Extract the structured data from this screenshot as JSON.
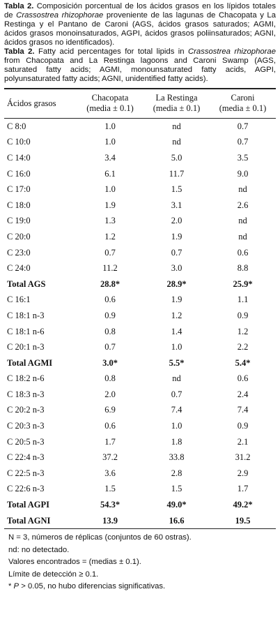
{
  "caption_es": {
    "label": "Tabla 2.",
    "text_before": " Composición porcentual de los ácidos grasos en los lípidos totales de ",
    "species": "Crassostrea rhizophorae",
    "text_after": " proveniente de las lagunas de Chacopata y La Restinga y el Pantano de Caroni (AGS, ácidos grasos saturados; AGMI, ácidos grasos monoinsaturados, AGPI, ácidos grasos poliinsaturados; AGNI, ácidos grasos no identificados)."
  },
  "caption_en": {
    "label": "Tabla 2.",
    "text_before": " Fatty acid percentages for total lipids in ",
    "species": "Crassostrea rhizophorae",
    "text_after": " from Chacopata and La Restinga lagoons and Caroni Swamp (AGS, saturated fatty acids; AGMI, monounsaturated fatty acids, AGPI, polyunsaturated fatty acids; AGNI, unidentified fatty acids)."
  },
  "table": {
    "header": [
      {
        "name": "Ácidos grasos"
      },
      {
        "name": "Chacopata",
        "sub": "(media ± 0.1)"
      },
      {
        "name": "La Restinga",
        "sub": "(media ± 0.1)"
      },
      {
        "name": "Caroni",
        "sub": "(media ± 0.1)"
      }
    ],
    "rows": [
      {
        "cells": [
          "C 8:0",
          "1.0",
          "nd",
          "0.7"
        ]
      },
      {
        "cells": [
          "C 10:0",
          "1.0",
          "nd",
          "0.7"
        ]
      },
      {
        "cells": [
          "C 14:0",
          "3.4",
          "5.0",
          "3.5"
        ]
      },
      {
        "cells": [
          "C 16:0",
          "6.1",
          "11.7",
          "9.0"
        ]
      },
      {
        "cells": [
          "C 17:0",
          "1.0",
          "1.5",
          "nd"
        ]
      },
      {
        "cells": [
          "C 18:0",
          "1.9",
          "3.1",
          "2.6"
        ]
      },
      {
        "cells": [
          "C 19:0",
          "1.3",
          "2.0",
          "nd"
        ]
      },
      {
        "cells": [
          "C 20:0",
          "1.2",
          "1.9",
          "nd"
        ]
      },
      {
        "cells": [
          "C 23:0",
          "0.7",
          "0.7",
          "0.6"
        ]
      },
      {
        "cells": [
          "C 24:0",
          "11.2",
          "3.0",
          "8.8"
        ]
      },
      {
        "cells": [
          "Total AGS",
          "28.8*",
          "28.9*",
          "25.9*"
        ],
        "bold": true
      },
      {
        "cells": [
          "C 16:1",
          "0.6",
          "1.9",
          "1.1"
        ]
      },
      {
        "cells": [
          "C 18:1 n-3",
          "0.9",
          "1.2",
          "0.9"
        ]
      },
      {
        "cells": [
          "C 18:1 n-6",
          "0.8",
          "1.4",
          "1.2"
        ]
      },
      {
        "cells": [
          "C 20:1 n-3",
          "0.7",
          "1.0",
          "2.2"
        ]
      },
      {
        "cells": [
          "Total AGMI",
          "3.0*",
          "5.5*",
          "5.4*"
        ],
        "bold": true
      },
      {
        "cells": [
          "C 18:2 n-6",
          "0.8",
          "nd",
          "0.6"
        ]
      },
      {
        "cells": [
          "C 18:3 n-3",
          "2.0",
          "0.7",
          "2.4"
        ]
      },
      {
        "cells": [
          "C 20:2 n-3",
          "6.9",
          "7.4",
          "7.4"
        ]
      },
      {
        "cells": [
          "C 20:3 n-3",
          "0.6",
          "1.0",
          "0.9"
        ]
      },
      {
        "cells": [
          "C 20:5 n-3",
          "1.7",
          "1.8",
          "2.1"
        ]
      },
      {
        "cells": [
          "C 22:4 n-3",
          "37.2",
          "33.8",
          "31.2"
        ]
      },
      {
        "cells": [
          "C 22:5 n-3",
          "3.6",
          "2.8",
          "2.9"
        ]
      },
      {
        "cells": [
          "C 22:6 n-3",
          "1.5",
          "1.5",
          "1.7"
        ]
      },
      {
        "cells": [
          "Total AGPI",
          "54.3*",
          "49.0*",
          "49.2*"
        ],
        "bold": true
      },
      {
        "cells": [
          "Total AGNI",
          "13.9",
          "16.6",
          "19.5"
        ],
        "bold": true
      }
    ]
  },
  "footnotes": {
    "lines": [
      "N = 3, números de réplicas (conjuntos de 60 ostras).",
      "nd: no detectado.",
      "Valores encontrados =  (medias ± 0.1).",
      "Límite de detección ≥ 0.1."
    ],
    "significance": {
      "prefix": "* ",
      "symbol": "P",
      "text": " > 0.05, no hubo diferencias significativas."
    }
  }
}
